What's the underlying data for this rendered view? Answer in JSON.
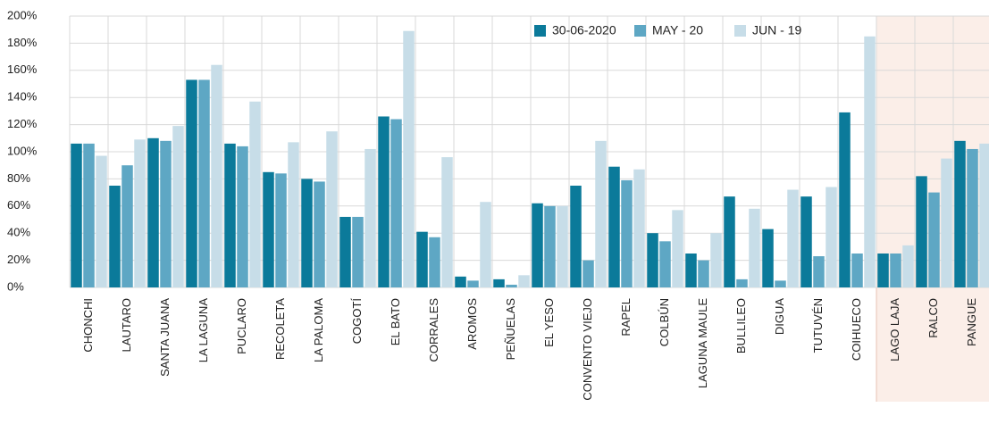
{
  "chart_data": {
    "type": "bar",
    "categories": [
      "CHONCHI",
      "LAUTARO",
      "SANTA JUANA",
      "LA LAGUNA",
      "PUCLARO",
      "RECOLETA",
      "LA PALOMA",
      "COGOTÍ",
      "EL BATO",
      "CORRALES",
      "AROMOS",
      "PEÑUELAS",
      "EL YESO",
      "CONVENTO VIEJO",
      "RAPEL",
      "COLBÚN",
      "LAGUNA MAULE",
      "BULLILEO",
      "DIGUA",
      "TUTUVÉN",
      "COIHUECO",
      "LAGO LAJA",
      "RALCO",
      "PANGUE"
    ],
    "series": [
      {
        "name": "30-06-2020",
        "color": "#0b7a9a",
        "values": [
          106,
          75,
          110,
          153,
          106,
          85,
          80,
          52,
          126,
          41,
          8,
          6,
          62,
          75,
          89,
          40,
          25,
          67,
          43,
          67,
          129,
          25,
          82,
          108
        ]
      },
      {
        "name": "MAY - 20",
        "color": "#5ea7c4",
        "values": [
          106,
          90,
          108,
          153,
          104,
          84,
          78,
          52,
          124,
          37,
          5,
          2,
          60,
          20,
          79,
          34,
          20,
          6,
          5,
          23,
          25,
          25,
          70,
          102
        ]
      },
      {
        "name": "JUN - 19",
        "color": "#c7dde8",
        "values": [
          97,
          109,
          119,
          164,
          137,
          107,
          115,
          102,
          189,
          96,
          63,
          9,
          60,
          108,
          87,
          57,
          40,
          58,
          72,
          74,
          185,
          31,
          95,
          106
        ]
      }
    ],
    "ylim": [
      0,
      200
    ],
    "yticks": [
      {
        "value": 0,
        "label": "0%"
      },
      {
        "value": 20,
        "label": "20%"
      },
      {
        "value": 40,
        "label": "40%"
      },
      {
        "value": 60,
        "label": "60%"
      },
      {
        "value": 80,
        "label": "80%"
      },
      {
        "value": 100,
        "label": "100%"
      },
      {
        "value": 120,
        "label": "120%"
      },
      {
        "value": 140,
        "label": "140%"
      },
      {
        "value": 160,
        "label": "160%"
      },
      {
        "value": 180,
        "label": "180%"
      },
      {
        "value": 200,
        "label": "200%"
      }
    ],
    "grid": true,
    "legend": "top-right",
    "highlight_start": 21,
    "highlight_color": "#fbeee8"
  }
}
